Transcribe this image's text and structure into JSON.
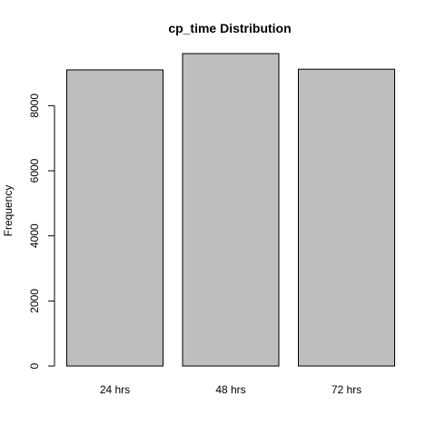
{
  "chart_data": {
    "type": "bar",
    "title": "cp_time Distribution",
    "xlabel": "",
    "ylabel": "Frequency",
    "categories": [
      "24 hrs",
      "48 hrs",
      "72 hrs"
    ],
    "values": [
      9100,
      9600,
      9120
    ],
    "ylim": [
      0,
      9600
    ],
    "yticks": [
      "0",
      "2000",
      "4000",
      "6000",
      "8000"
    ],
    "bar_color": "#bebebe",
    "border_color": "#000000",
    "grid": false,
    "legend": "none"
  }
}
